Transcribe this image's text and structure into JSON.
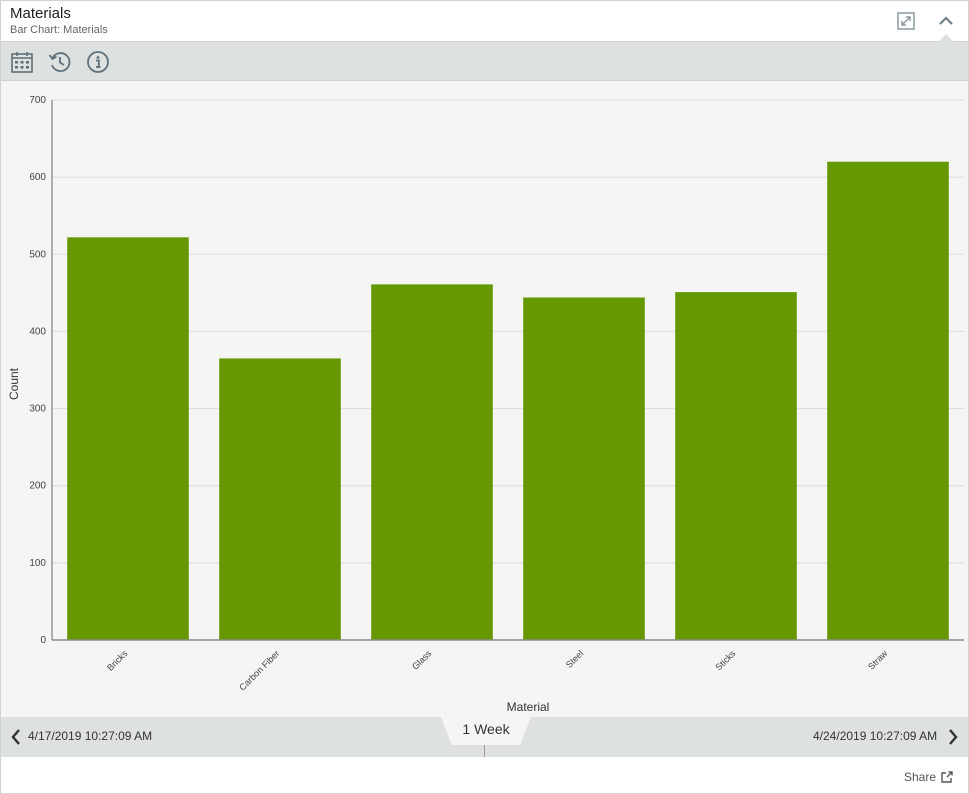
{
  "header": {
    "title": "Materials",
    "subtitle": "Bar Chart: Materials",
    "expand_icon": "expand-icon",
    "collapse_icon": "chevron-up-icon"
  },
  "toolbar": {
    "icons": [
      "calendar-icon",
      "history-clock-icon",
      "info-icon"
    ]
  },
  "timebar": {
    "start": "4/17/2019 10:27:09 AM",
    "end": "4/24/2019 10:27:09 AM",
    "range": "1 Week"
  },
  "footer": {
    "share_label": "Share"
  },
  "colors": {
    "bar": "#669900",
    "toolbar_bg": "#dde1e0",
    "plot_bg": "#f5f5f5"
  },
  "chart_data": {
    "type": "bar",
    "title": "",
    "xlabel": "Material",
    "ylabel": "Count",
    "categories": [
      "Bricks",
      "Carbon Fiber",
      "Glass",
      "Steel",
      "Sticks",
      "Straw"
    ],
    "values": [
      522,
      365,
      461,
      444,
      451,
      620
    ],
    "ylim": [
      0,
      700
    ],
    "yticks": [
      0,
      100,
      200,
      300,
      400,
      500,
      600,
      700
    ],
    "grid": true,
    "legend": false
  }
}
